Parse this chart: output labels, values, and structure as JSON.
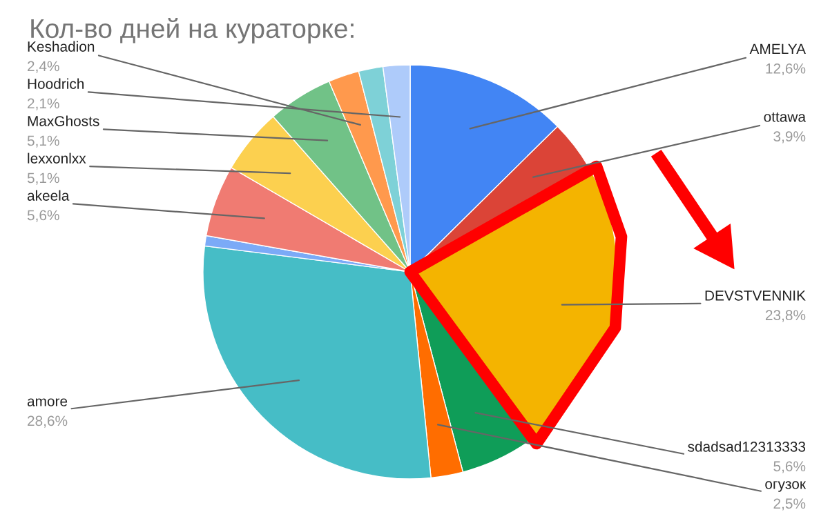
{
  "chart_data": {
    "type": "pie",
    "title": "Кол-во дней на кураторке:",
    "categories": [
      "AMELYA",
      "ottawa",
      "DEVSTVENNIK",
      "sdadsad12313333",
      "огузок",
      "amore",
      null,
      "akeela",
      "lexxonlxx",
      "MaxGhosts",
      "Keshadion",
      null,
      "Hoodrich"
    ],
    "values": [
      12.6,
      3.9,
      23.8,
      5.6,
      2.5,
      28.6,
      0.8,
      5.6,
      5.1,
      5.1,
      2.4,
      1.9,
      2.1
    ],
    "value_labels": [
      "12,6%",
      "3,9%",
      "23,8%",
      "5,6%",
      "2,5%",
      "28,6%",
      null,
      "5,6%",
      "5,1%",
      "5,1%",
      "2,4%",
      null,
      "2,1%"
    ],
    "colors": [
      "#4285f4",
      "#db4437",
      "#f4b400",
      "#0f9d58",
      "#ff6d00",
      "#46bdc6",
      "#7baaf7",
      "#f07b72",
      "#fcd04f",
      "#71c287",
      "#ff994d",
      "#7ed1d7",
      "#aecbfa"
    ]
  }
}
